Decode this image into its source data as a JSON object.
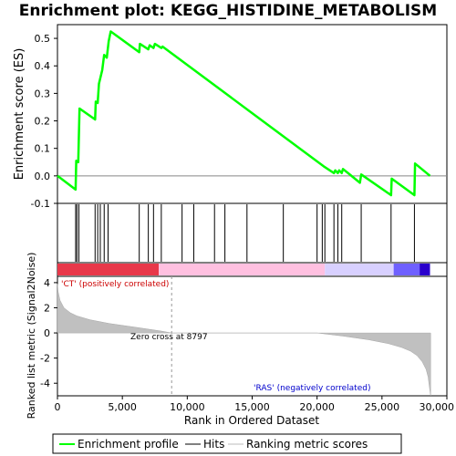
{
  "chart_data": {
    "type": "line",
    "title": "Enrichment plot: KEGG_HISTIDINE_METABOLISM",
    "es_panel": {
      "ylabel": "Enrichment score (ES)",
      "ylim": [
        -0.1,
        0.55
      ],
      "yticks": [
        "0.5",
        "0.4",
        "0.3",
        "0.2",
        "0.1",
        "0.0",
        "-0.1"
      ],
      "ytick_values": [
        0.5,
        0.4,
        0.3,
        0.2,
        0.1,
        0.0,
        -0.1
      ],
      "series": [
        {
          "name": "Enrichment profile",
          "color": "#00ff00",
          "x": [
            0,
            1400,
            1450,
            1600,
            1700,
            2900,
            2950,
            3100,
            3200,
            3450,
            3600,
            3800,
            3950,
            4100,
            6300,
            6350,
            7000,
            7100,
            7400,
            7500,
            8000,
            8100,
            20500,
            21300,
            21400,
            21600,
            21700,
            21900,
            22000,
            23300,
            23400,
            25700,
            25750,
            27500,
            27550,
            28700
          ],
          "y": [
            0.0,
            -0.05,
            0.055,
            0.05,
            0.245,
            0.205,
            0.27,
            0.265,
            0.335,
            0.385,
            0.44,
            0.43,
            0.49,
            0.525,
            0.45,
            0.48,
            0.46,
            0.475,
            0.465,
            0.48,
            0.465,
            0.47,
            0.035,
            0.01,
            0.02,
            0.01,
            0.02,
            0.01,
            0.025,
            -0.025,
            0.005,
            -0.07,
            -0.01,
            -0.07,
            0.045,
            0.0
          ]
        }
      ]
    },
    "hits": [
      1400,
      1500,
      1650,
      2900,
      3100,
      3300,
      3600,
      3900,
      6300,
      7000,
      7400,
      8000,
      9600,
      10500,
      12100,
      12900,
      14600,
      17400,
      20000,
      20400,
      20600,
      21300,
      21600,
      21900,
      23400,
      25700,
      27500
    ],
    "rank_panel": {
      "ylabel": "Ranked list metric (Signal2Noise)",
      "ylim": [
        -5,
        4.5
      ],
      "yticks": [
        "4",
        "2",
        "0",
        "-2",
        "-4"
      ],
      "ytick_values": [
        4,
        2,
        0,
        -2,
        -4
      ],
      "metric_x": [
        0,
        50,
        200,
        500,
        1000,
        1500,
        2500,
        4000,
        6000,
        8000,
        8797,
        12000,
        16000,
        20000,
        22000,
        24000,
        25500,
        26500,
        27200,
        27700,
        28100,
        28400,
        28550,
        28650,
        28750
      ],
      "metric_y": [
        3.9,
        3.3,
        2.6,
        2.0,
        1.6,
        1.35,
        1.05,
        0.75,
        0.45,
        0.15,
        0.0,
        0.0,
        0.0,
        0.0,
        -0.25,
        -0.55,
        -0.85,
        -1.15,
        -1.45,
        -1.8,
        -2.3,
        -2.9,
        -3.5,
        -4.3,
        -5.0
      ],
      "zero_cross_label": "Zero cross at 8797",
      "zero_cross": 8797,
      "pos_label": "'CT' (positively correlated)",
      "neg_label": "'RAS' (negatively correlated)"
    },
    "x_axis": {
      "xlabel": "Rank in Ordered Dataset",
      "xlim": [
        0,
        30000
      ],
      "xticks": [
        "0",
        "5,000",
        "10,000",
        "15,000",
        "20,000",
        "25,000",
        "30,000"
      ],
      "xtick_values": [
        0,
        5000,
        10000,
        15000,
        20000,
        25000,
        30000
      ]
    },
    "color_bar": {
      "range": [
        0,
        28700
      ],
      "segments": [
        {
          "from": 0,
          "to": 7800,
          "color": "#e8384a"
        },
        {
          "from": 7800,
          "to": 20600,
          "color": "#ffc0e0"
        },
        {
          "from": 20600,
          "to": 25900,
          "color": "#d8d0ff"
        },
        {
          "from": 25900,
          "to": 27900,
          "color": "#6f60ff"
        },
        {
          "from": 27900,
          "to": 28700,
          "color": "#2a00cc"
        }
      ]
    },
    "legend": {
      "placement": "bottom",
      "items": [
        {
          "label": "Enrichment profile",
          "color": "#00ff00"
        },
        {
          "label": "Hits",
          "color": "#000000"
        },
        {
          "label": "Ranking metric scores",
          "color": "#bbbbbb"
        }
      ]
    }
  }
}
